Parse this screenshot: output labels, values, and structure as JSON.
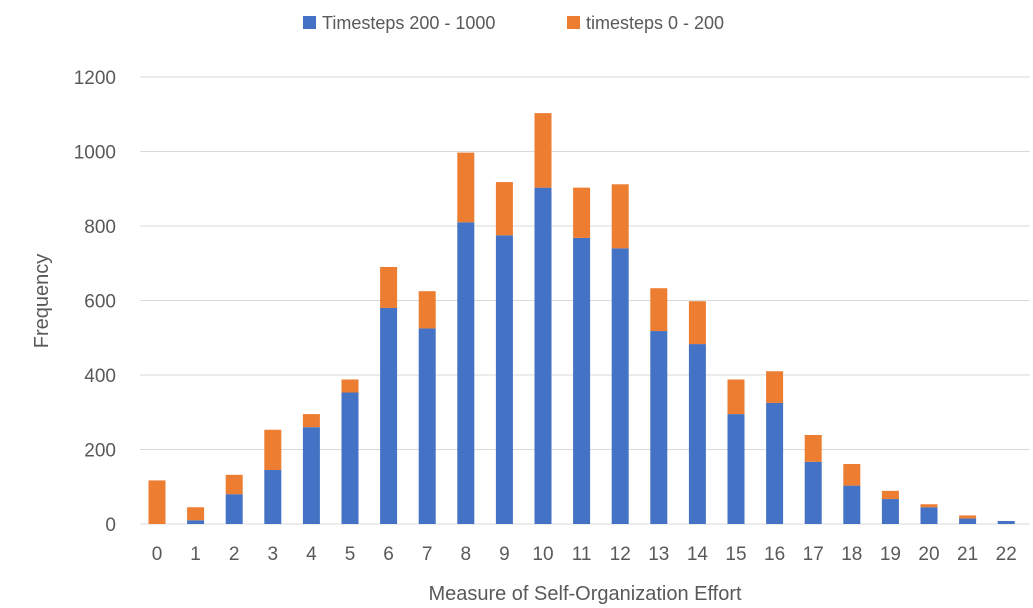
{
  "chart_data": {
    "type": "bar",
    "stacked": true,
    "categories": [
      "0",
      "1",
      "2",
      "3",
      "4",
      "5",
      "6",
      "7",
      "8",
      "9",
      "10",
      "11",
      "12",
      "13",
      "14",
      "15",
      "16",
      "17",
      "18",
      "19",
      "20",
      "21",
      "22"
    ],
    "series": [
      {
        "name": "Timesteps 200 - 1000",
        "color": "#4472C4",
        "values": [
          0,
          10,
          80,
          145,
          260,
          353,
          580,
          525,
          810,
          775,
          903,
          768,
          740,
          518,
          483,
          295,
          325,
          167,
          103,
          67,
          45,
          15,
          8
        ]
      },
      {
        "name": "timesteps 0 - 200",
        "color": "#ED7D31",
        "values": [
          117,
          35,
          52,
          108,
          35,
          35,
          110,
          100,
          187,
          143,
          200,
          135,
          172,
          115,
          115,
          93,
          85,
          72,
          58,
          22,
          8,
          8,
          0
        ]
      }
    ],
    "xlabel": "Measure of Self-Organization Effort",
    "ylabel": "Frequency",
    "ylim": [
      0,
      1200
    ],
    "yticks": [
      "0",
      "200",
      "400",
      "600",
      "800",
      "1000",
      "1200"
    ],
    "grid": true,
    "legend_position": "top-center"
  }
}
